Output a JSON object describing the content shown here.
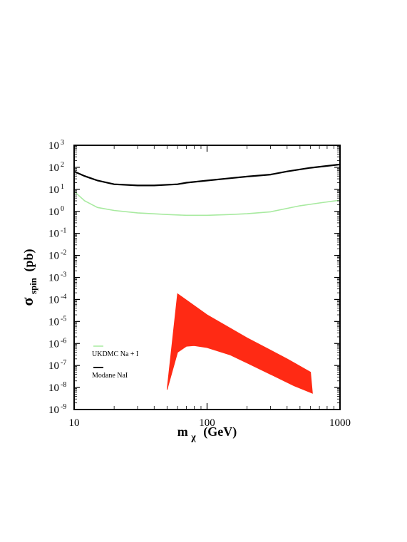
{
  "chart_data": {
    "type": "line",
    "x_scale": "log",
    "y_scale": "log",
    "xlim": [
      10,
      1000
    ],
    "ylim": [
      1e-09,
      1000
    ],
    "x_ticks": [
      {
        "value": 10,
        "label": "10"
      },
      {
        "value": 100,
        "label": "100"
      },
      {
        "value": 1000,
        "label": "1000"
      }
    ],
    "y_ticks": [
      {
        "exp": 3,
        "base": "10",
        "sup": "3"
      },
      {
        "exp": 2,
        "base": "10",
        "sup": "2"
      },
      {
        "exp": 1,
        "base": "10",
        "sup": "1"
      },
      {
        "exp": 0,
        "base": "10",
        "sup": "0"
      },
      {
        "exp": -1,
        "base": "10",
        "sup": "-1"
      },
      {
        "exp": -2,
        "base": "10",
        "sup": "-2"
      },
      {
        "exp": -3,
        "base": "10",
        "sup": "-3"
      },
      {
        "exp": -4,
        "base": "10",
        "sup": "-4"
      },
      {
        "exp": -5,
        "base": "10",
        "sup": "-5"
      },
      {
        "exp": -6,
        "base": "10",
        "sup": "-6"
      },
      {
        "exp": -7,
        "base": "10",
        "sup": "-7"
      },
      {
        "exp": -8,
        "base": "10",
        "sup": "-8"
      },
      {
        "exp": -9,
        "base": "10",
        "sup": "-9"
      }
    ],
    "xlabel": {
      "main": "m",
      "sub": "χ",
      "rest": "(GeV)"
    },
    "ylabel": {
      "main": "σ",
      "sub": "spin",
      "rest": "(pb)"
    },
    "grid": false,
    "legend_position": "lower-left",
    "series": [
      {
        "name": "UKDMC Na + I",
        "color": "#a8eaa0",
        "type": "line",
        "points": [
          [
            10,
            8.0
          ],
          [
            12,
            3.0
          ],
          [
            15,
            1.5
          ],
          [
            20,
            1.1
          ],
          [
            30,
            0.85
          ],
          [
            50,
            0.72
          ],
          [
            70,
            0.66
          ],
          [
            100,
            0.66
          ],
          [
            150,
            0.72
          ],
          [
            200,
            0.78
          ],
          [
            300,
            0.95
          ],
          [
            500,
            1.8
          ],
          [
            700,
            2.4
          ],
          [
            1000,
            3.2
          ]
        ]
      },
      {
        "name": "Modane NaI",
        "color": "#000000",
        "type": "line",
        "points": [
          [
            10,
            65
          ],
          [
            12,
            40
          ],
          [
            15,
            25
          ],
          [
            20,
            17
          ],
          [
            30,
            15
          ],
          [
            40,
            15
          ],
          [
            60,
            17
          ],
          [
            70,
            20
          ],
          [
            100,
            25
          ],
          [
            150,
            32
          ],
          [
            200,
            38
          ],
          [
            300,
            47
          ],
          [
            400,
            65
          ],
          [
            600,
            95
          ],
          [
            1000,
            135
          ]
        ]
      },
      {
        "name": "",
        "color": "#ff2a14",
        "type": "area",
        "upper": [
          [
            50,
            8e-09
          ],
          [
            60,
            0.00018
          ],
          [
            100,
            2e-05
          ],
          [
            200,
            1.8e-06
          ],
          [
            400,
            2e-07
          ],
          [
            600,
            5e-08
          ],
          [
            620,
            5.5e-09
          ]
        ],
        "lower": [
          [
            50,
            8e-09
          ],
          [
            60,
            4e-07
          ],
          [
            70,
            7.5e-07
          ],
          [
            80,
            8e-07
          ],
          [
            100,
            6.5e-07
          ],
          [
            150,
            3e-07
          ],
          [
            200,
            1.3e-07
          ],
          [
            300,
            4e-08
          ],
          [
            450,
            1.2e-08
          ],
          [
            620,
            5.5e-09
          ]
        ]
      }
    ]
  }
}
